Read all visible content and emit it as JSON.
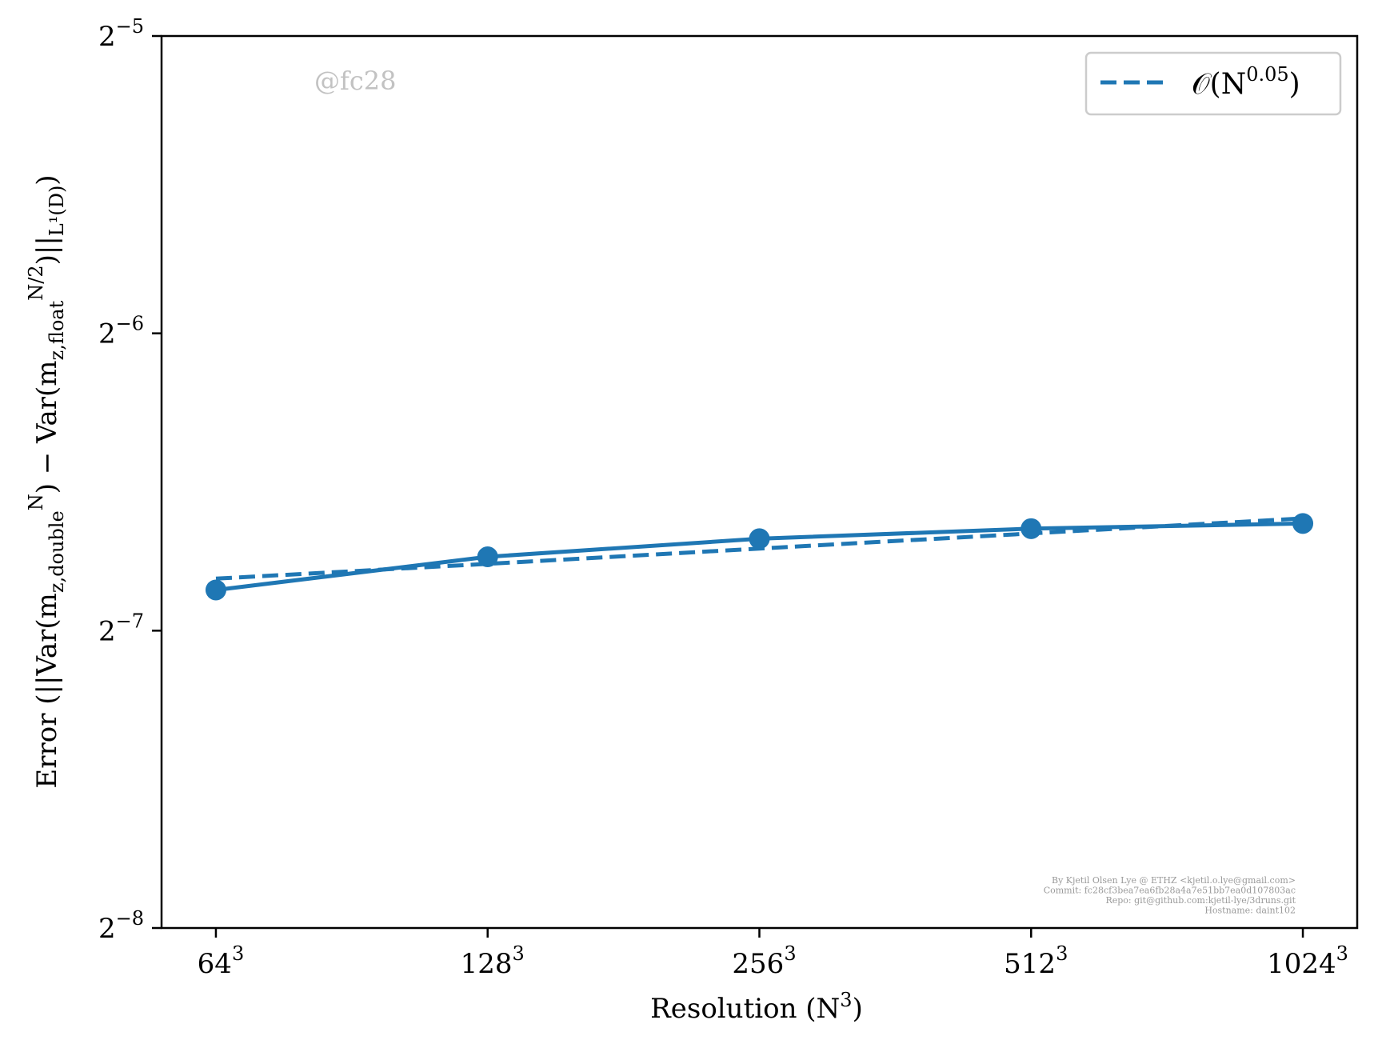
{
  "chart_data": {
    "type": "line",
    "xscale": "log2",
    "yscale": "log2",
    "x": [
      64,
      128,
      256,
      512,
      1024
    ],
    "x_tick_labels": [
      {
        "base": "64",
        "exp": "3"
      },
      {
        "base": "128",
        "exp": "3"
      },
      {
        "base": "256",
        "exp": "3"
      },
      {
        "base": "512",
        "exp": "3"
      },
      {
        "base": "1024",
        "exp": "3"
      }
    ],
    "y_ticks": [
      {
        "value": -5,
        "base": "2",
        "exp": "−5"
      },
      {
        "value": -6,
        "base": "2",
        "exp": "−6"
      },
      {
        "value": -7,
        "base": "2",
        "exp": "−7"
      },
      {
        "value": -8,
        "base": "2",
        "exp": "−8"
      }
    ],
    "xlim_log2": [
      5.8,
      10.2
    ],
    "ylim_log2": [
      -8,
      -5
    ],
    "series": [
      {
        "style": "solid-with-markers",
        "color": "#1f77b4",
        "y": [
          0.00859,
          0.00928,
          0.00968,
          0.00991,
          0.01003
        ]
      },
      {
        "name": "O(N^0.05)",
        "style": "dashed",
        "color": "#1f77b4",
        "y": [
          0.00882,
          0.00913,
          0.00946,
          0.0098,
          0.01015
        ]
      }
    ],
    "xlabel": {
      "text": "Resolution (N",
      "sup": "3",
      "close": ")"
    },
    "ylabel": {
      "prefix": "Error (||Var(m",
      "sub1": "z,double",
      "sup1": "N",
      "middle": ") − Var(m",
      "sub2": "z,float",
      "sup2": "N/2",
      "suffix": ")||",
      "sub3": "L¹(D)",
      "close": ")"
    },
    "legend": {
      "placement": "top-right",
      "label_prefix": "𝒪(N",
      "label_sup": "0.05",
      "label_suffix": ")"
    },
    "grid": false,
    "watermark": "@fc28",
    "credits": [
      "By Kjetil Olsen Lye @ ETHZ <kjetil.o.lye@gmail.com>",
      "Commit: fc28cf3bea7ea6fb28a4a7e51bb7ea0d107803ac",
      "Repo: git@github.com:kjetil-lye/3druns.git",
      "Hostname: daint102"
    ]
  }
}
